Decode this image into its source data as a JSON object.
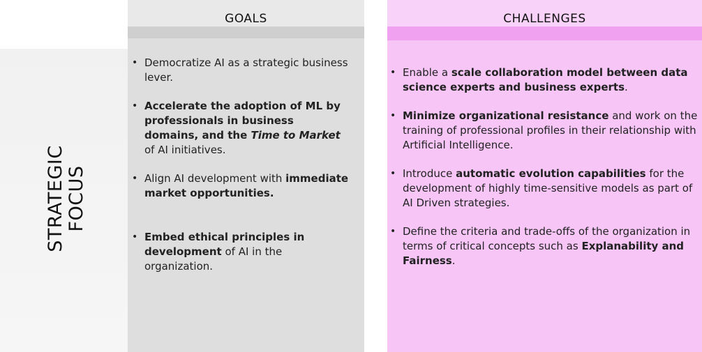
{
  "side_title": [
    "STRATEGIC",
    "FOCUS"
  ],
  "goals": {
    "header": "GOALS",
    "items": [
      [
        {
          "t": "Democratize AI as a strategic business lever."
        }
      ],
      [
        {
          "t": "Accelerate the adoption of ML by professionals in business domains, and the ",
          "b": true
        },
        {
          "t": "Time to Market",
          "b": true,
          "i": true
        },
        {
          "t": " of AI initiatives."
        }
      ],
      [
        {
          "t": "Align AI development with "
        },
        {
          "t": "immediate market opportunities.",
          "b": true
        }
      ],
      [
        {
          "t": "Embed ethical principles in development",
          "b": true
        },
        {
          "t": " of AI in the organization."
        }
      ]
    ]
  },
  "challenges": {
    "header": "CHALLENGES",
    "items": [
      [
        {
          "t": "Enable a "
        },
        {
          "t": "scale collaboration model between data science experts and business experts",
          "b": true
        },
        {
          "t": "."
        }
      ],
      [
        {
          "t": "Minimize organizational resistance",
          "b": true
        },
        {
          "t": " and work on the training of professional profiles in their relationship with Artificial Intelligence."
        }
      ],
      [
        {
          "t": "Introduce "
        },
        {
          "t": "automatic evolution capabilities",
          "b": true
        },
        {
          "t": " for the development of highly time-sensitive models as part of AI Driven strategies."
        }
      ],
      [
        {
          "t": "Define the criteria and trade-offs of the organization in terms of critical concepts such as "
        },
        {
          "t": "Explanability and Fairness",
          "b": true
        },
        {
          "t": "."
        }
      ]
    ]
  },
  "colors": {
    "goals_bg": "#dedede",
    "goals_header_bg": "#e9e9e9",
    "challenges_bg": "#f7c6f7",
    "challenges_bar": "#f0a2f0"
  }
}
